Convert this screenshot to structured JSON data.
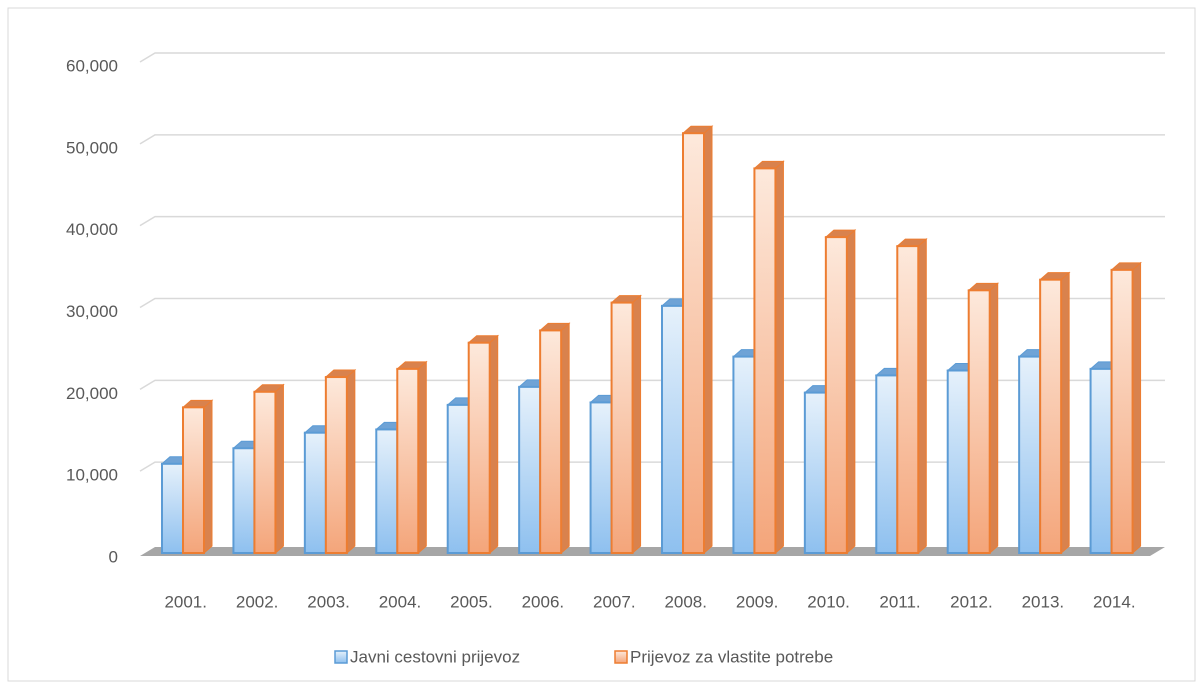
{
  "chart_data": {
    "type": "bar3d",
    "categories": [
      "2001.",
      "2002.",
      "2003.",
      "2004.",
      "2005.",
      "2006.",
      "2007.",
      "2008.",
      "2009.",
      "2010.",
      "2011.",
      "2012.",
      "2013.",
      "2014."
    ],
    "series": [
      {
        "name": "Javni cestovni prijevoz",
        "color": "#5b9bd5",
        "values": [
          10900,
          12800,
          14700,
          15100,
          18100,
          20300,
          18400,
          30200,
          24000,
          19600,
          21700,
          22300,
          24000,
          22500
        ]
      },
      {
        "name": "Prijevoz za vlastite potrebe",
        "color": "#ed7d31",
        "values": [
          17800,
          19700,
          21500,
          22500,
          25700,
          27200,
          30600,
          51300,
          47000,
          38600,
          37500,
          32100,
          33400,
          34600
        ]
      }
    ],
    "ylim": [
      0,
      60000
    ],
    "yticks": [
      0,
      {
        "value": 10000,
        "label": "10,000"
      },
      {
        "value": 20000,
        "label": "20,000"
      },
      {
        "value": 30000,
        "label": "30,000"
      },
      {
        "value": 40000,
        "label": "40,000"
      },
      {
        "value": 50000,
        "label": "50,000"
      },
      {
        "value": 60000,
        "label": "60,000"
      }
    ],
    "grid": true,
    "legend": "bottom"
  }
}
